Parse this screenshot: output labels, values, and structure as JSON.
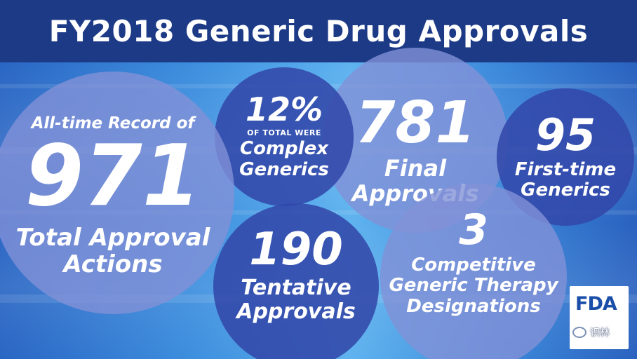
{
  "header": {
    "title": "FY2018 Generic Drug Approvals"
  },
  "stats": {
    "total": {
      "prefix": "All-time Record of",
      "value": "971",
      "label_1": "Total Approval",
      "label_2": "Actions"
    },
    "complex": {
      "value": "12%",
      "small": "OF TOTAL WERE",
      "label_1": "Complex",
      "label_2": "Generics"
    },
    "final": {
      "value": "781",
      "label_1": "Final",
      "label_2": "Approvals"
    },
    "first_time": {
      "value": "95",
      "label_1": "First-time",
      "label_2": "Generics"
    },
    "tentative": {
      "value": "190",
      "label_1": "Tentative",
      "label_2": "Approvals"
    },
    "competitive": {
      "value": "3",
      "label_1": "Competitive",
      "label_2": "Generic Therapy",
      "label_3": "Designations"
    }
  },
  "logo": {
    "text": "FDA"
  },
  "watermark": {
    "text": "识林"
  },
  "colors": {
    "header": "#1c3a86",
    "light_circle": "#8291d7",
    "dark_circle": "#3248aa",
    "logo_text": "#1a4ea8"
  }
}
